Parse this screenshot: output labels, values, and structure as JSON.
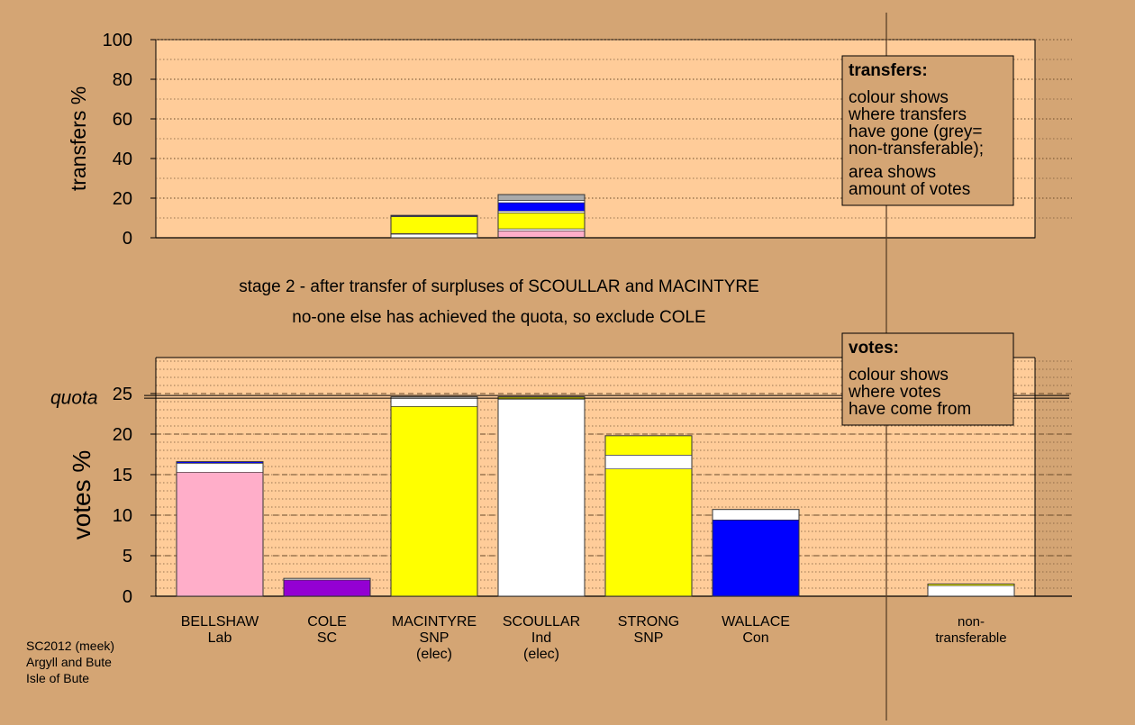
{
  "colors": {
    "background": "#d4a574",
    "panel": "#ffcc99",
    "lab": "#ffaec9",
    "sc": "#9400d3",
    "snp": "#ffff00",
    "ind": "#ffffff",
    "con": "#0000ff",
    "nontransferable": "#aaaaaa"
  },
  "stage_title": "stage 2 - after transfer of surpluses of SCOULLAR and MACINTYRE",
  "stage_subtitle": "no-one else has achieved the quota, so exclude COLE",
  "footer": [
    "SC2012 (meek)",
    "Argyll and Bute",
    "Isle of Bute"
  ],
  "chart_data": [
    {
      "type": "bar",
      "stacked": true,
      "ylabel": "transfers %",
      "ylim": [
        0,
        100
      ],
      "yticks": [
        0,
        20,
        40,
        60,
        80,
        100
      ],
      "grid": true,
      "legend_box": {
        "title": "transfers:",
        "lines": [
          "colour shows",
          "where transfers",
          "have gone (grey=",
          "non-transferable);"
        ],
        "lines2": [
          "area shows",
          "amount of votes"
        ]
      },
      "bars": [
        {
          "slot": 2,
          "segments": [
            {
              "value": 1.8,
              "color": "ind"
            },
            {
              "value": 0.3,
              "color": "lab"
            },
            {
              "value": 8.5,
              "color": "snp"
            },
            {
              "value": 0.3,
              "color": "ind"
            },
            {
              "value": 0.4,
              "color": "con"
            }
          ]
        },
        {
          "slot": 3,
          "segments": [
            {
              "value": 0.3,
              "color": "ind"
            },
            {
              "value": 3.2,
              "color": "lab"
            },
            {
              "value": 1.0,
              "color": "ind"
            },
            {
              "value": 8.0,
              "color": "snp"
            },
            {
              "value": 1.0,
              "color": "ind"
            },
            {
              "value": 4.2,
              "color": "con"
            },
            {
              "value": 1.1,
              "color": "ind"
            },
            {
              "value": 3.0,
              "color": "nontransferable"
            }
          ]
        }
      ]
    },
    {
      "type": "bar",
      "stacked": true,
      "ylabel": "votes %",
      "ylim": [
        0,
        25
      ],
      "yticks": [
        0,
        5,
        10,
        15,
        20,
        25
      ],
      "grid": true,
      "quota": 24.6,
      "quota_label": "quota",
      "legend_box": {
        "title": "votes:",
        "lines": [
          "colour shows",
          "where votes",
          "have come from"
        ]
      },
      "categories": [
        [
          "BELLSHAW",
          "Lab"
        ],
        [
          "COLE",
          "SC"
        ],
        [
          "MACINTYRE",
          "SNP",
          "(elec)"
        ],
        [
          "SCOULLAR",
          "Ind",
          "(elec)"
        ],
        [
          "STRONG",
          "SNP"
        ],
        [
          "WALLACE",
          "Con"
        ],
        [],
        [
          "non-",
          "transferable"
        ]
      ],
      "bars": [
        {
          "slot": 0,
          "segments": [
            {
              "value": 15.3,
              "color": "lab"
            },
            {
              "value": 1.1,
              "color": "ind"
            },
            {
              "value": 0.2,
              "color": "con"
            }
          ]
        },
        {
          "slot": 1,
          "segments": [
            {
              "value": 2.0,
              "color": "sc"
            },
            {
              "value": 0.2,
              "color": "ind"
            }
          ]
        },
        {
          "slot": 2,
          "segments": [
            {
              "value": 23.4,
              "color": "snp"
            },
            {
              "value": 1.2,
              "color": "ind"
            }
          ]
        },
        {
          "slot": 3,
          "segments": [
            {
              "value": 24.3,
              "color": "ind"
            },
            {
              "value": 0.3,
              "color": "snp"
            }
          ]
        },
        {
          "slot": 4,
          "segments": [
            {
              "value": 15.7,
              "color": "snp"
            },
            {
              "value": 1.7,
              "color": "ind"
            },
            {
              "value": 2.4,
              "color": "snp"
            }
          ]
        },
        {
          "slot": 5,
          "segments": [
            {
              "value": 9.4,
              "color": "con"
            },
            {
              "value": 1.3,
              "color": "ind"
            }
          ]
        },
        {
          "slot": 7,
          "segments": [
            {
              "value": 1.3,
              "color": "ind"
            },
            {
              "value": 0.2,
              "color": "snp"
            }
          ]
        }
      ]
    }
  ]
}
